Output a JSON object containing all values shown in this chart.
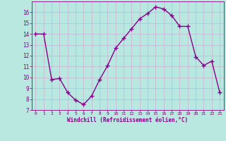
{
  "x": [
    0,
    1,
    2,
    3,
    4,
    5,
    6,
    7,
    8,
    9,
    10,
    11,
    12,
    13,
    14,
    15,
    16,
    17,
    18,
    19,
    20,
    21,
    22,
    23
  ],
  "y": [
    14,
    14,
    9.8,
    9.9,
    8.6,
    7.9,
    7.5,
    8.3,
    9.8,
    11.1,
    12.7,
    13.6,
    14.5,
    15.4,
    15.9,
    16.5,
    16.3,
    15.7,
    14.7,
    14.7,
    11.9,
    11.1,
    11.5,
    8.6
  ],
  "line_color": "#880088",
  "marker": "+",
  "marker_size": 4,
  "bg_color": "#b8e8e0",
  "grid_color": "#c8b8d8",
  "xlabel": "Windchill (Refroidissement éolien,°C)",
  "xlabel_color": "#880088",
  "tick_color": "#880088",
  "ylim": [
    7,
    17
  ],
  "xlim": [
    -0.5,
    23.5
  ],
  "yticks": [
    7,
    8,
    9,
    10,
    11,
    12,
    13,
    14,
    15,
    16
  ],
  "xticks": [
    0,
    1,
    2,
    3,
    4,
    5,
    6,
    7,
    8,
    9,
    10,
    11,
    12,
    13,
    14,
    15,
    16,
    17,
    18,
    19,
    20,
    21,
    22,
    23
  ],
  "linewidth": 1.0,
  "figsize": [
    3.2,
    2.0
  ],
  "dpi": 100
}
